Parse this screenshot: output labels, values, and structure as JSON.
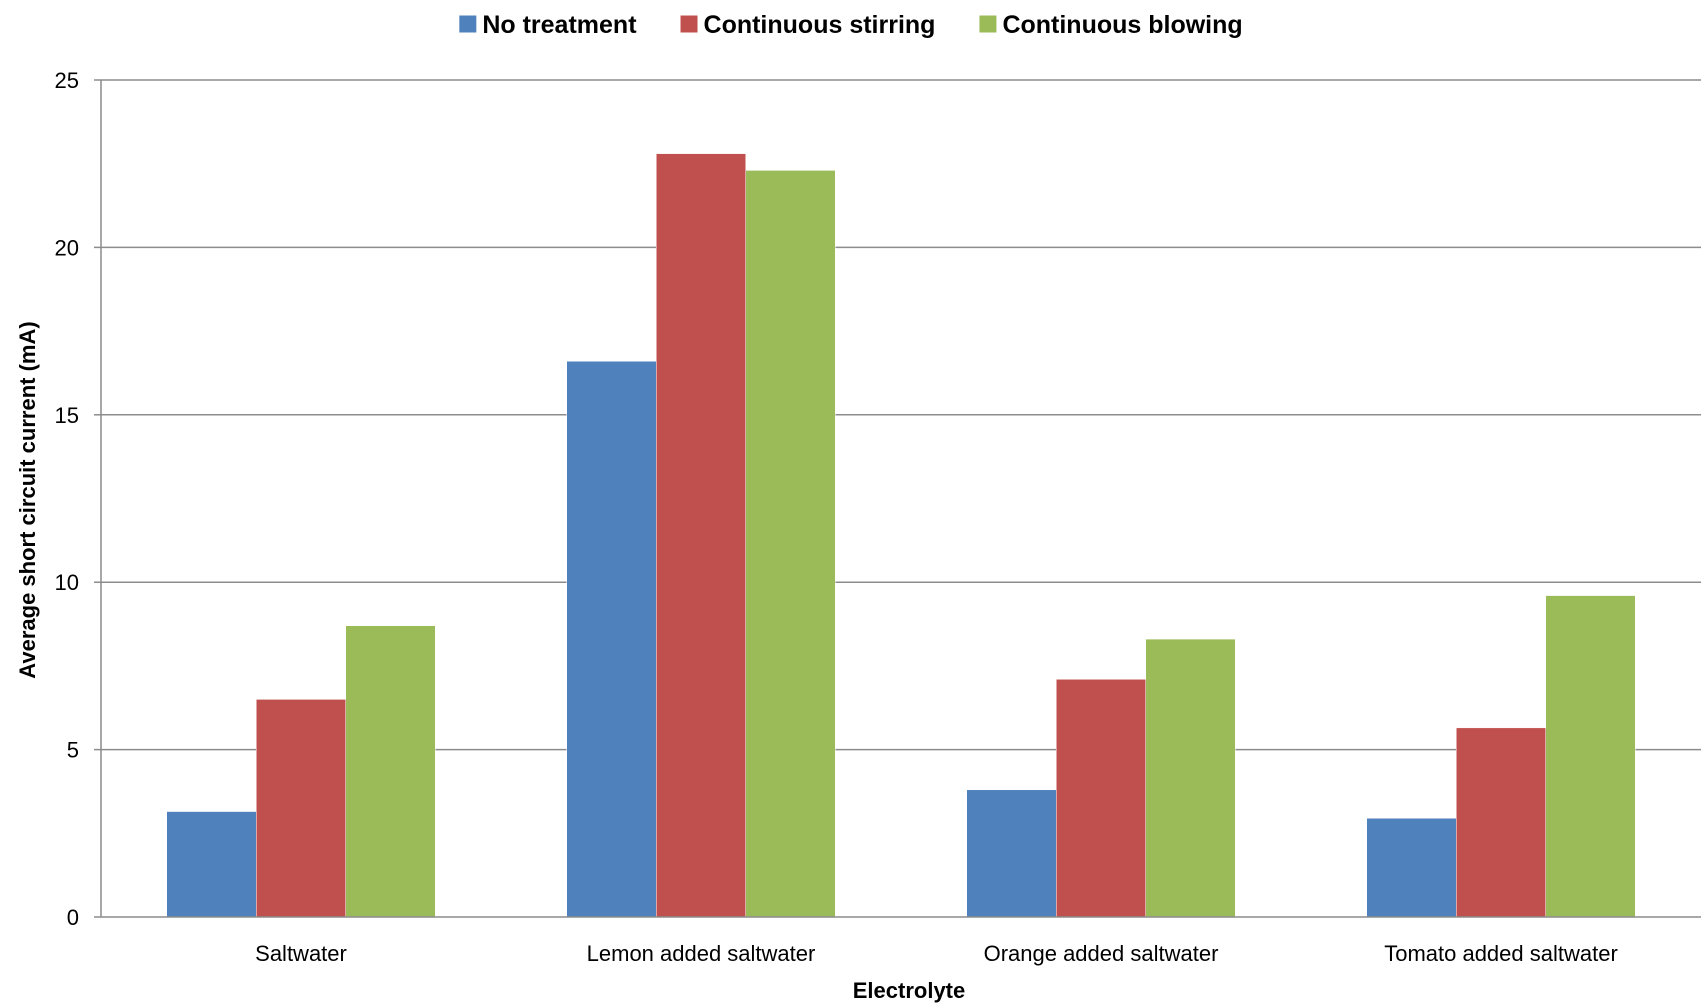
{
  "chart_data": {
    "type": "bar",
    "title": "",
    "xlabel": "Electrolyte",
    "ylabel": "Average short circuit current (mA)",
    "ylim": [
      0,
      25
    ],
    "yticks": [
      0,
      5,
      10,
      15,
      20,
      25
    ],
    "grid": true,
    "legend_position": "top",
    "categories": [
      "Saltwater",
      "Lemon added saltwater",
      "Orange added saltwater",
      "Tomato added saltwater"
    ],
    "series": [
      {
        "name": "No treatment",
        "color": "#4F81BD",
        "values": [
          3.15,
          16.6,
          3.8,
          2.95
        ]
      },
      {
        "name": "Continuous stirring",
        "color": "#C0504D",
        "values": [
          6.5,
          22.8,
          7.1,
          5.65
        ]
      },
      {
        "name": "Continuous blowing",
        "color": "#9BBB59",
        "values": [
          8.7,
          22.3,
          8.3,
          9.6
        ]
      }
    ]
  }
}
